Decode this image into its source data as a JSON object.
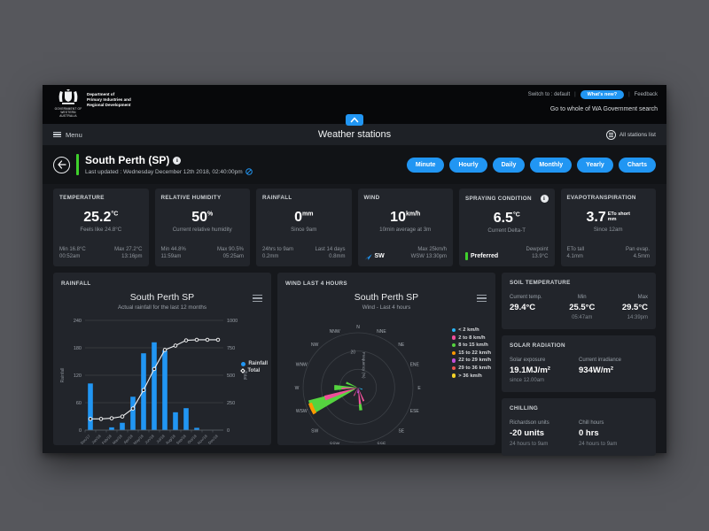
{
  "colors": {
    "accent": "#2196f3",
    "green": "#3fd02c",
    "card_bg": "#22252b",
    "page_bg": "#56575c"
  },
  "top_bar": {
    "dept_lines": [
      "Department of",
      "Primary Industries and",
      "Regional Development"
    ],
    "gov_label": "GOVERNMENT OF WESTERN AUSTRALIA",
    "switch_label": "Switch to : default",
    "whats_new_label": "What's new?",
    "feedback_label": "Feedback",
    "search_label": "Go to whole of WA Government search"
  },
  "nav": {
    "menu_label": "Menu",
    "title": "Weather stations",
    "stations_list_label": "All stations list"
  },
  "station": {
    "name": "South Perth (SP)",
    "last_updated": "Last updated : Wednesday December 12th 2018, 02:40:00pm",
    "range_buttons": [
      "Minute",
      "Hourly",
      "Daily",
      "Monthly",
      "Yearly",
      "Charts"
    ]
  },
  "cards": {
    "temperature": {
      "title": "TEMPERATURE",
      "value": "25.2",
      "unit": "°C",
      "sub": "Feels like 24.8°C",
      "fl1": "Min 16.8°C",
      "fl2": "00:52am",
      "fr1": "Max 27.2°C",
      "fr2": "13:16pm"
    },
    "humidity": {
      "title": "RELATIVE HUMIDITY",
      "value": "50",
      "unit": "%",
      "sub": "Current relative humidity",
      "fl1": "Min 44.8%",
      "fl2": "11:59am",
      "fr1": "Max 90.5%",
      "fr2": "05:25am"
    },
    "rainfall": {
      "title": "RAINFALL",
      "value": "0",
      "unit": "mm",
      "sub": "Since 9am",
      "fl1": "24hrs to 9am",
      "fl2": "0.2mm",
      "fr1": "Last 14 days",
      "fr2": "0.8mm"
    },
    "wind": {
      "title": "WIND",
      "value": "10",
      "unit": "km/h",
      "sub": "10min average at 3m",
      "direction": "SW",
      "fr1": "Max 25km/h",
      "fr2": "WSW 13:30pm"
    },
    "spraying": {
      "title": "SPRAYING CONDITION",
      "value": "6.5",
      "unit": "°C",
      "sub": "Current Delta-T",
      "status": "Preferred",
      "fr1": "Dewpoint",
      "fr2": "13.9°C"
    },
    "evapo": {
      "title": "EVAPOTRANSPIRATION",
      "value": "3.7",
      "unit_line1": "ETo short",
      "unit_line2": "mm",
      "sub": "Since 12am",
      "fl1": "ETo tall",
      "fl2": "4.1mm",
      "fr1": "Pan evap.",
      "fr2": "4.5mm"
    }
  },
  "rainfall_panel": {
    "header": "RAINFALL",
    "chart_data": {
      "type": "bar",
      "title": "South Perth SP",
      "subtitle": "Actual rainfall for the last 12 months",
      "categories": [
        "Dec/17",
        "Jan/18",
        "Feb/18",
        "Mar/18",
        "Apr/18",
        "May/18",
        "Jun/18",
        "Jul/18",
        "Aug/18",
        "Sep/18",
        "Oct/18",
        "Nov/18",
        "Dec/18"
      ],
      "series": [
        {
          "name": "Rainfall",
          "type": "bar",
          "color": "#2196f3",
          "axis": "left",
          "values": [
            102,
            0,
            6,
            16,
            73,
            168,
            192,
            174,
            39,
            48,
            5,
            0,
            0
          ]
        },
        {
          "name": "Total",
          "type": "line",
          "color": "#ffffff",
          "axis": "right",
          "values": [
            102,
            102,
            108,
            124,
            197,
            365,
            557,
            731,
            770,
            818,
            823,
            823,
            823
          ]
        }
      ],
      "y_left": {
        "label": "Rainfall",
        "ticks": [
          0,
          60,
          120,
          180,
          240
        ],
        "max": 240
      },
      "y_right": {
        "label": "Total",
        "ticks": [
          0,
          250,
          500,
          750,
          1000
        ],
        "max": 1000
      },
      "legend": [
        "Rainfall",
        "Total"
      ],
      "legend_position": "right"
    }
  },
  "wind_panel": {
    "header": "WIND LAST 4 HOURS",
    "chart_data": {
      "type": "wind_rose",
      "title": "South Perth SP",
      "subtitle": "Wind - Last 4 hours",
      "radial_label": "Frequency (%)",
      "radial_ticks": [
        10,
        20,
        30
      ],
      "radial_tick_label": "20",
      "radial_max": 30,
      "compass": [
        "N",
        "NNE",
        "NE",
        "ENE",
        "E",
        "ESE",
        "SE",
        "SSE",
        "S",
        "SSW",
        "SW",
        "WSW",
        "W",
        "WNW",
        "NW",
        "NNW"
      ],
      "speed_bins": [
        {
          "label": "< 2 km/h",
          "color": "#29b6f6"
        },
        {
          "label": "2 to 8 km/h",
          "color": "#f04f9a"
        },
        {
          "label": "8 to 15 km/h",
          "color": "#55d43f"
        },
        {
          "label": "15 to 22 km/h",
          "color": "#ff9800"
        },
        {
          "label": "22 to 29 km/h",
          "color": "#c24fd9"
        },
        {
          "label": "29 to 36 km/h",
          "color": "#ef5350"
        },
        {
          "label": "> 36 km/h",
          "color": "#f5d327"
        }
      ],
      "wedges": [
        {
          "dir": "WSW",
          "bin": 2,
          "from": 2,
          "to": 28,
          "width": 16,
          "offset": 0
        },
        {
          "dir": "WSW",
          "bin": 3,
          "from": 26.5,
          "to": 28.5,
          "width": 13,
          "offset": -2
        },
        {
          "dir": "WSW",
          "bin": 1,
          "from": 0,
          "to": 19,
          "width": 8,
          "offset": 5
        },
        {
          "dir": "W",
          "bin": 2,
          "from": 1,
          "to": 13,
          "width": 13,
          "offset": 0
        },
        {
          "dir": "W",
          "bin": 1,
          "from": 0,
          "to": 9,
          "width": 6,
          "offset": -3
        },
        {
          "dir": "WNW",
          "bin": 2,
          "from": 0,
          "to": 7,
          "width": 10,
          "offset": 0
        },
        {
          "dir": "S",
          "bin": 1,
          "from": 0,
          "to": 11,
          "width": 8,
          "offset": -7
        },
        {
          "dir": "S",
          "bin": 2,
          "from": 9,
          "to": 12.5,
          "width": 8,
          "offset": -7
        },
        {
          "dir": "SSE",
          "bin": 1,
          "from": 0,
          "to": 8,
          "width": 7,
          "offset": 0
        },
        {
          "dir": "SSW",
          "bin": 1,
          "from": 0,
          "to": 5,
          "width": 6,
          "offset": 4
        },
        {
          "dir": "S",
          "bin": 4,
          "from": 0,
          "to": 3,
          "width": 18,
          "offset": 0
        },
        {
          "dir": "ESE",
          "bin": 0,
          "from": 0,
          "to": 2.5,
          "width": 14,
          "offset": 0
        }
      ]
    }
  },
  "soil_card": {
    "title": "SOIL TEMPERATURE",
    "col1_label": "Current temp.",
    "col1_value": "29.4°C",
    "col2_label": "Min",
    "col2_value": "25.5°C",
    "col2_time": "05:47am",
    "col3_label": "Max",
    "col3_value": "29.5°C",
    "col3_time": "14:39pm"
  },
  "solar_card": {
    "title": "SOLAR RADIATION",
    "col1_label": "Solar exposure",
    "col1_value": "19.1MJ/m²",
    "col1_sub": "since 12.00am",
    "col2_label": "Current irradiance",
    "col2_value": "934W/m²"
  },
  "chilling_card": {
    "title": "CHILLING",
    "col1_label": "Richardson units",
    "col1_value": "-20 units",
    "col1_sub": "24 hours to 9am",
    "col2_label": "Chill hours",
    "col2_value": "0 hrs",
    "col2_sub": "24 hours to 9am"
  }
}
